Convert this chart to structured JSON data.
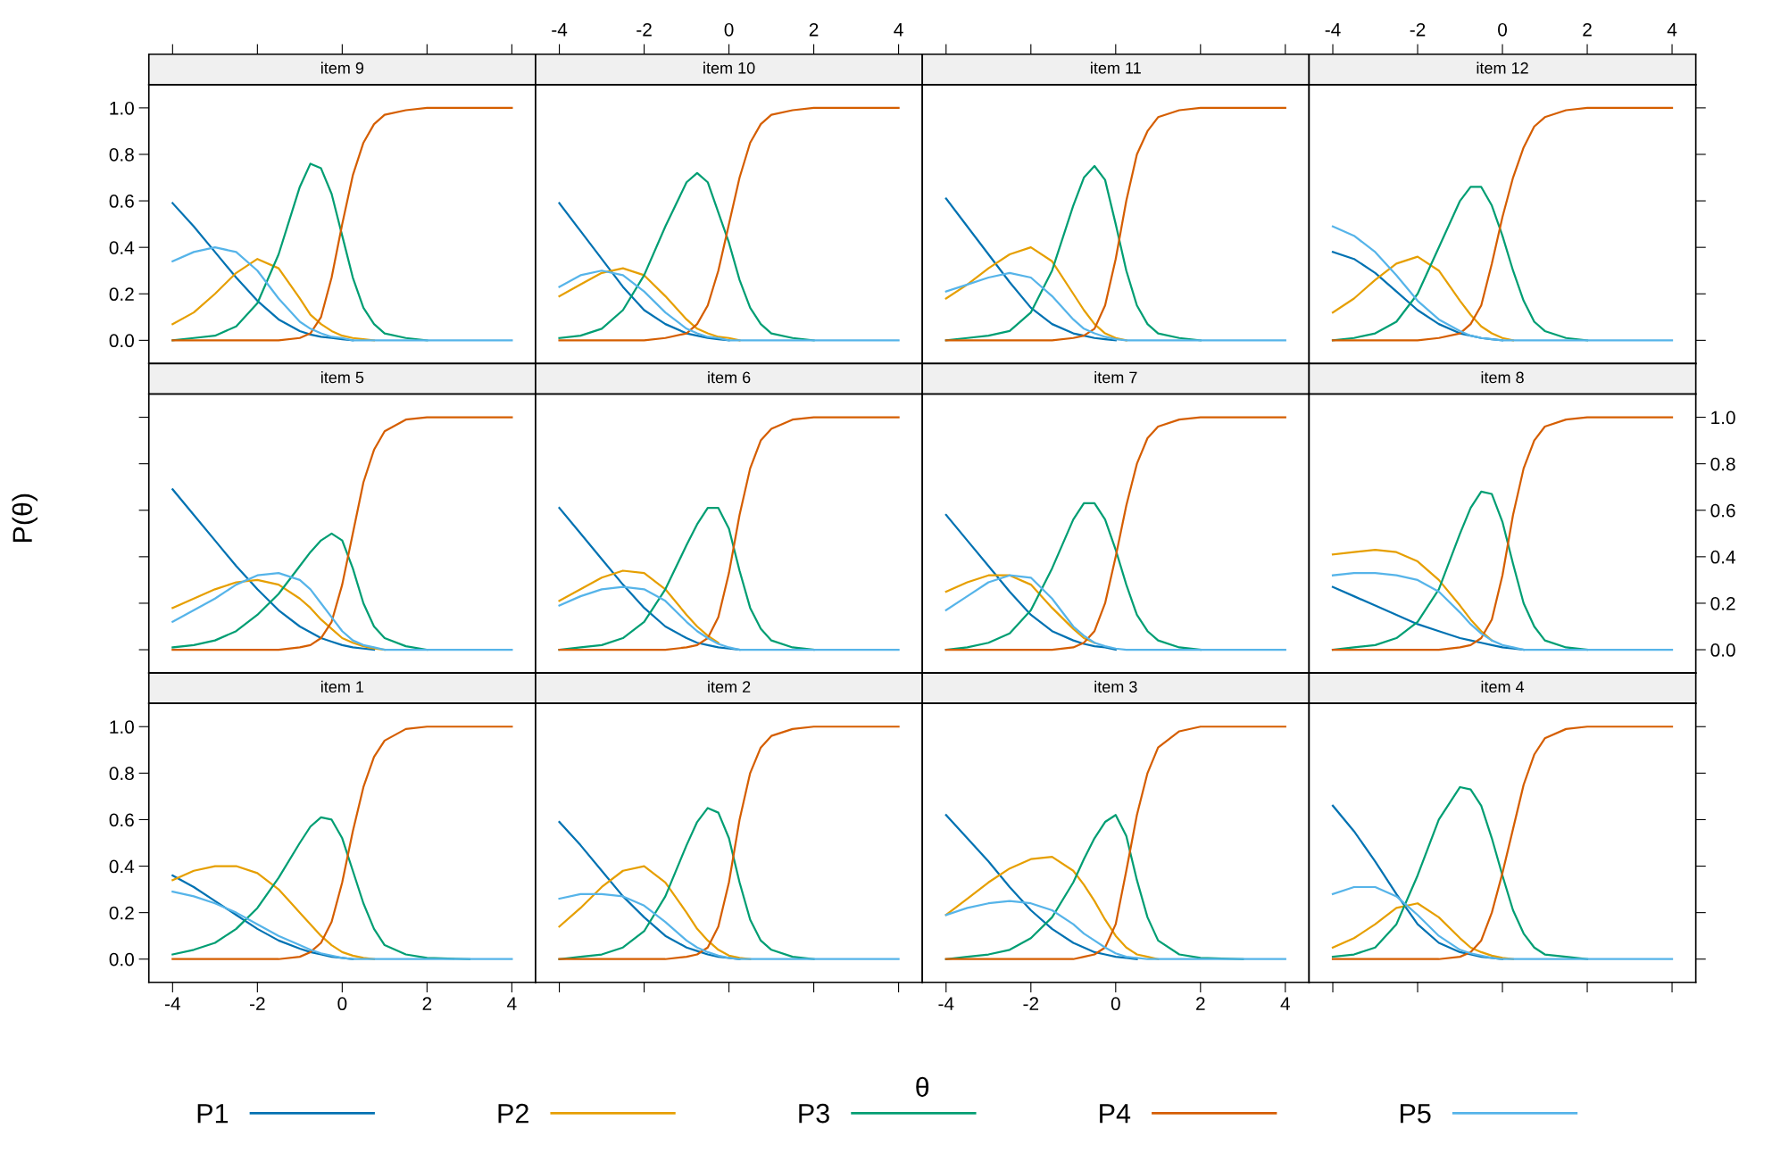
{
  "chart_data": [
    {
      "type": "line",
      "title": "item 9",
      "legend": "bottom",
      "x": [
        -4,
        -3.5,
        -3,
        -2.5,
        -2,
        -1.5,
        -1,
        -0.75,
        -0.5,
        -0.25,
        0,
        0.25,
        0.5,
        0.75,
        1,
        1.5,
        2,
        3,
        4
      ],
      "xlim": [
        -4.56,
        4.56
      ],
      "ylim": [
        -0.1,
        1.1
      ],
      "xticks": [
        {
          "value": -4,
          "label": null
        },
        {
          "value": -2,
          "label": null
        },
        {
          "value": 0,
          "label": null
        },
        {
          "value": 2,
          "label": null
        },
        {
          "value": 4,
          "label": null
        }
      ],
      "yticks": [
        {
          "value": 0,
          "label": "0.0"
        },
        {
          "value": 0.2,
          "label": "0.2"
        },
        {
          "value": 0.4,
          "label": "0.4"
        },
        {
          "value": 0.6,
          "label": "0.6"
        },
        {
          "value": 0.8,
          "label": "0.8"
        },
        {
          "value": 1,
          "label": "1.0"
        }
      ],
      "tick_labels": "y",
      "series": [
        {
          "name": "P1",
          "color": "#0072b2",
          "values": [
            0.59,
            0.49,
            0.38,
            0.27,
            0.17,
            0.09,
            0.04,
            0.025,
            0.015,
            0.01,
            0.005,
            0,
            null,
            null,
            null,
            null,
            null,
            null,
            null
          ]
        },
        {
          "name": "P2",
          "color": "#e69f00",
          "values": [
            0.07,
            0.12,
            0.2,
            0.29,
            0.35,
            0.31,
            0.18,
            0.11,
            0.07,
            0.04,
            0.02,
            0.01,
            0.005,
            0,
            null,
            null,
            null,
            null,
            null
          ]
        },
        {
          "name": "P3",
          "color": "#009e73",
          "values": [
            0,
            0.01,
            0.02,
            0.06,
            0.16,
            0.37,
            0.66,
            0.76,
            0.74,
            0.63,
            0.45,
            0.27,
            0.14,
            0.07,
            0.03,
            0.01,
            0,
            null,
            null
          ]
        },
        {
          "name": "P4",
          "color": "#d55e00",
          "values": [
            0,
            0,
            0,
            0,
            0,
            0,
            0.01,
            0.03,
            0.1,
            0.27,
            0.5,
            0.71,
            0.85,
            0.93,
            0.97,
            0.99,
            1,
            1,
            1
          ]
        },
        {
          "name": "P5",
          "color": "#56b4e9",
          "values": [
            0.34,
            0.38,
            0.4,
            0.38,
            0.3,
            0.18,
            0.08,
            0.05,
            0.03,
            0.015,
            0.01,
            0,
            0,
            0,
            0,
            0,
            0,
            0,
            0
          ]
        }
      ]
    },
    {
      "type": "line",
      "title": "item 10",
      "x": [
        -4,
        -3.5,
        -3,
        -2.5,
        -2,
        -1.5,
        -1,
        -0.75,
        -0.5,
        -0.25,
        0,
        0.25,
        0.5,
        0.75,
        1,
        1.5,
        2,
        3,
        4
      ],
      "xlim": [
        -4.56,
        4.56
      ],
      "ylim": [
        -0.1,
        1.1
      ],
      "xticks": [
        -4,
        -2,
        0,
        2,
        4
      ],
      "tick_labels": "x",
      "series": [
        {
          "color": "#0072b2",
          "values": [
            0.59,
            0.47,
            0.35,
            0.23,
            0.13,
            0.07,
            0.03,
            0.02,
            0.01,
            0.005,
            0,
            null,
            null,
            null,
            null,
            null,
            null,
            null,
            null
          ]
        },
        {
          "color": "#e69f00",
          "values": [
            0.19,
            0.24,
            0.29,
            0.31,
            0.28,
            0.19,
            0.09,
            0.05,
            0.03,
            0.015,
            0.01,
            0,
            null,
            null,
            null,
            null,
            null,
            null,
            null
          ]
        },
        {
          "color": "#009e73",
          "values": [
            0.01,
            0.02,
            0.05,
            0.13,
            0.28,
            0.49,
            0.68,
            0.72,
            0.68,
            0.55,
            0.42,
            0.26,
            0.14,
            0.07,
            0.03,
            0.01,
            0,
            null,
            null
          ]
        },
        {
          "color": "#d55e00",
          "values": [
            0,
            0,
            0,
            0,
            0,
            0.01,
            0.03,
            0.07,
            0.15,
            0.3,
            0.5,
            0.7,
            0.85,
            0.93,
            0.97,
            0.99,
            1,
            1,
            1
          ]
        },
        {
          "color": "#56b4e9",
          "values": [
            0.23,
            0.28,
            0.3,
            0.28,
            0.21,
            0.12,
            0.05,
            0.03,
            0.015,
            0.01,
            0,
            0,
            0,
            0,
            0,
            0,
            0,
            0,
            0
          ]
        }
      ]
    },
    {
      "type": "line",
      "title": "item 11",
      "x": [
        -4,
        -3.5,
        -3,
        -2.5,
        -2,
        -1.5,
        -1,
        -0.75,
        -0.5,
        -0.25,
        0,
        0.25,
        0.5,
        0.75,
        1,
        1.5,
        2,
        3,
        4
      ],
      "xlim": [
        -4.56,
        4.56
      ],
      "ylim": [
        -0.1,
        1.1
      ],
      "xticks": [
        {
          "value": -4,
          "label": null
        },
        {
          "value": -2,
          "label": null
        },
        {
          "value": 0,
          "label": null
        },
        {
          "value": 2,
          "label": null
        },
        {
          "value": 4,
          "label": null
        }
      ],
      "tick_labels": false,
      "series": [
        {
          "color": "#0072b2",
          "values": [
            0.61,
            0.49,
            0.37,
            0.25,
            0.14,
            0.07,
            0.03,
            0.02,
            0.01,
            0.005,
            0,
            null,
            null,
            null,
            null,
            null,
            null,
            null,
            null
          ]
        },
        {
          "color": "#e69f00",
          "values": [
            0.18,
            0.24,
            0.31,
            0.37,
            0.4,
            0.34,
            0.2,
            0.13,
            0.07,
            0.03,
            0.01,
            0,
            null,
            null,
            null,
            null,
            null,
            null,
            null
          ]
        },
        {
          "color": "#009e73",
          "values": [
            0,
            0.01,
            0.02,
            0.04,
            0.12,
            0.3,
            0.58,
            0.7,
            0.75,
            0.69,
            0.5,
            0.3,
            0.15,
            0.07,
            0.03,
            0.01,
            0,
            null,
            null
          ]
        },
        {
          "color": "#d55e00",
          "values": [
            0,
            0,
            0,
            0,
            0,
            0,
            0.01,
            0.02,
            0.05,
            0.15,
            0.35,
            0.6,
            0.8,
            0.9,
            0.96,
            0.99,
            1,
            1,
            1
          ]
        },
        {
          "color": "#56b4e9",
          "values": [
            0.21,
            0.24,
            0.27,
            0.29,
            0.27,
            0.19,
            0.09,
            0.05,
            0.03,
            0.015,
            0.005,
            0,
            0,
            0,
            0,
            0,
            0,
            0,
            0
          ]
        }
      ]
    },
    {
      "type": "line",
      "title": "item 12",
      "x": [
        -4,
        -3.5,
        -3,
        -2.5,
        -2,
        -1.5,
        -1,
        -0.75,
        -0.5,
        -0.25,
        0,
        0.25,
        0.5,
        0.75,
        1,
        1.5,
        2,
        3,
        4
      ],
      "xlim": [
        -4.56,
        4.56
      ],
      "ylim": [
        -0.1,
        1.1
      ],
      "xticks": [
        -4,
        -2,
        0,
        2,
        4
      ],
      "yticks": [
        {
          "value": 0,
          "label": null
        },
        {
          "value": 0.2,
          "label": null
        },
        {
          "value": 0.4,
          "label": null
        },
        {
          "value": 0.6,
          "label": null
        },
        {
          "value": 0.8,
          "label": null
        },
        {
          "value": 1,
          "label": null
        }
      ],
      "tick_labels": "x",
      "series": [
        {
          "color": "#0072b2",
          "values": [
            0.38,
            0.35,
            0.29,
            0.21,
            0.13,
            0.07,
            0.03,
            0.02,
            0.01,
            0.005,
            0,
            null,
            null,
            null,
            null,
            null,
            null,
            null,
            null
          ]
        },
        {
          "color": "#e69f00",
          "values": [
            0.12,
            0.18,
            0.26,
            0.33,
            0.36,
            0.3,
            0.17,
            0.11,
            0.06,
            0.03,
            0.01,
            0,
            null,
            null,
            null,
            null,
            null,
            null,
            null
          ]
        },
        {
          "color": "#009e73",
          "values": [
            0,
            0.01,
            0.03,
            0.08,
            0.2,
            0.4,
            0.6,
            0.66,
            0.66,
            0.58,
            0.45,
            0.3,
            0.17,
            0.08,
            0.04,
            0.01,
            0,
            null,
            null
          ]
        },
        {
          "color": "#d55e00",
          "values": [
            0,
            0,
            0,
            0,
            0,
            0.01,
            0.03,
            0.07,
            0.15,
            0.33,
            0.53,
            0.7,
            0.83,
            0.92,
            0.96,
            0.99,
            1,
            1,
            1
          ]
        },
        {
          "color": "#56b4e9",
          "values": [
            0.49,
            0.45,
            0.38,
            0.28,
            0.17,
            0.09,
            0.04,
            0.02,
            0.01,
            0.005,
            0,
            0,
            0,
            0,
            0,
            0,
            0,
            0,
            0
          ]
        }
      ]
    },
    {
      "type": "line",
      "title": "item 5",
      "ylabel": "P(θ)",
      "x": [
        -4,
        -3.5,
        -3,
        -2.5,
        -2,
        -1.5,
        -1,
        -0.75,
        -0.5,
        -0.25,
        0,
        0.25,
        0.5,
        0.75,
        1,
        1.5,
        2,
        3,
        4
      ],
      "xlim": [
        -4.56,
        4.56
      ],
      "ylim": [
        -0.1,
        1.1
      ],
      "yticks": [
        {
          "value": 0,
          "label": null
        },
        {
          "value": 0.2,
          "label": null
        },
        {
          "value": 0.4,
          "label": null
        },
        {
          "value": 0.6,
          "label": null
        },
        {
          "value": 0.8,
          "label": null
        },
        {
          "value": 1,
          "label": null
        }
      ],
      "tick_labels": false,
      "series": [
        {
          "color": "#0072b2",
          "values": [
            0.69,
            0.58,
            0.47,
            0.36,
            0.26,
            0.17,
            0.1,
            0.075,
            0.05,
            0.035,
            0.02,
            0.01,
            0.005,
            0,
            null,
            null,
            null,
            null,
            null
          ]
        },
        {
          "color": "#e69f00",
          "values": [
            0.18,
            0.22,
            0.26,
            0.29,
            0.3,
            0.28,
            0.22,
            0.18,
            0.13,
            0.09,
            0.05,
            0.03,
            0.015,
            0.005,
            0,
            null,
            null,
            null,
            null
          ]
        },
        {
          "color": "#009e73",
          "values": [
            0.01,
            0.02,
            0.04,
            0.08,
            0.15,
            0.24,
            0.36,
            0.42,
            0.47,
            0.5,
            0.47,
            0.35,
            0.2,
            0.1,
            0.05,
            0.015,
            0,
            null,
            null
          ]
        },
        {
          "color": "#d55e00",
          "values": [
            0,
            0,
            0,
            0,
            0,
            0,
            0.01,
            0.02,
            0.05,
            0.12,
            0.28,
            0.5,
            0.72,
            0.86,
            0.94,
            0.99,
            1,
            1,
            1
          ]
        },
        {
          "color": "#56b4e9",
          "values": [
            0.12,
            0.17,
            0.22,
            0.28,
            0.32,
            0.33,
            0.3,
            0.26,
            0.2,
            0.14,
            0.08,
            0.04,
            0.02,
            0.01,
            0,
            0,
            0,
            0,
            0
          ]
        }
      ]
    },
    {
      "type": "line",
      "title": "item 6",
      "x": [
        -4,
        -3.5,
        -3,
        -2.5,
        -2,
        -1.5,
        -1,
        -0.75,
        -0.5,
        -0.25,
        0,
        0.25,
        0.5,
        0.75,
        1,
        1.5,
        2,
        3,
        4
      ],
      "xlim": [
        -4.56,
        4.56
      ],
      "ylim": [
        -0.1,
        1.1
      ],
      "tick_labels": false,
      "series": [
        {
          "color": "#0072b2",
          "values": [
            0.61,
            0.5,
            0.39,
            0.28,
            0.18,
            0.1,
            0.05,
            0.03,
            0.02,
            0.01,
            0.005,
            0,
            null,
            null,
            null,
            null,
            null,
            null,
            null
          ]
        },
        {
          "color": "#e69f00",
          "values": [
            0.21,
            0.26,
            0.31,
            0.34,
            0.33,
            0.26,
            0.15,
            0.1,
            0.06,
            0.03,
            null,
            null,
            null,
            null,
            null,
            null,
            null,
            null,
            null
          ]
        },
        {
          "color": "#009e73",
          "values": [
            0,
            0.01,
            0.02,
            0.05,
            0.12,
            0.26,
            0.45,
            0.54,
            0.61,
            0.61,
            0.52,
            0.34,
            0.18,
            0.09,
            0.04,
            0.01,
            0,
            null,
            null
          ]
        },
        {
          "color": "#d55e00",
          "values": [
            0,
            0,
            0,
            0,
            0,
            0,
            0.01,
            0.02,
            0.05,
            0.14,
            0.33,
            0.58,
            0.78,
            0.9,
            0.95,
            0.99,
            1,
            1,
            1
          ]
        },
        {
          "color": "#56b4e9",
          "values": [
            0.19,
            0.23,
            0.26,
            0.27,
            0.26,
            0.21,
            0.12,
            0.08,
            0.05,
            0.025,
            0.01,
            0,
            0,
            0,
            0,
            0,
            0,
            0,
            0
          ]
        }
      ]
    },
    {
      "type": "line",
      "title": "item 7",
      "x": [
        -4,
        -3.5,
        -3,
        -2.5,
        -2,
        -1.5,
        -1,
        -0.75,
        -0.5,
        -0.25,
        0,
        0.25,
        0.5,
        0.75,
        1,
        1.5,
        2,
        3,
        4
      ],
      "xlim": [
        -4.56,
        4.56
      ],
      "ylim": [
        -0.1,
        1.1
      ],
      "tick_labels": false,
      "series": [
        {
          "color": "#0072b2",
          "values": [
            0.58,
            0.47,
            0.36,
            0.25,
            0.15,
            0.08,
            0.04,
            0.025,
            0.015,
            0.01,
            0,
            null,
            null,
            null,
            null,
            null,
            null,
            null,
            null
          ]
        },
        {
          "color": "#e69f00",
          "values": [
            0.25,
            0.29,
            0.32,
            0.32,
            0.28,
            0.18,
            0.09,
            0.05,
            0.03,
            null,
            null,
            null,
            null,
            null,
            null,
            null,
            null,
            null,
            null
          ]
        },
        {
          "color": "#009e73",
          "values": [
            0,
            0.01,
            0.03,
            0.07,
            0.17,
            0.35,
            0.56,
            0.63,
            0.63,
            0.56,
            0.43,
            0.28,
            0.15,
            0.08,
            0.04,
            0.01,
            0,
            null,
            null
          ]
        },
        {
          "color": "#d55e00",
          "values": [
            0,
            0,
            0,
            0,
            0,
            0,
            0.01,
            0.03,
            0.08,
            0.2,
            0.4,
            0.62,
            0.8,
            0.91,
            0.96,
            0.99,
            1,
            1,
            1
          ]
        },
        {
          "color": "#56b4e9",
          "values": [
            0.17,
            0.23,
            0.29,
            0.32,
            0.31,
            0.22,
            0.1,
            0.06,
            0.03,
            0.015,
            0.005,
            0,
            0,
            0,
            0,
            0,
            0,
            0,
            0
          ]
        }
      ]
    },
    {
      "type": "line",
      "title": "item 8",
      "x": [
        -4,
        -3.5,
        -3,
        -2.5,
        -2,
        -1.5,
        -1,
        -0.75,
        -0.5,
        -0.25,
        0,
        0.25,
        0.5,
        0.75,
        1,
        1.5,
        2,
        3,
        4
      ],
      "xlim": [
        -4.56,
        4.56
      ],
      "ylim": [
        -0.1,
        1.1
      ],
      "yticks": [
        {
          "value": 0,
          "label": "0.0"
        },
        {
          "value": 0.2,
          "label": "0.2"
        },
        {
          "value": 0.4,
          "label": "0.4"
        },
        {
          "value": 0.6,
          "label": "0.6"
        },
        {
          "value": 0.8,
          "label": "0.8"
        },
        {
          "value": 1,
          "label": "1.0"
        }
      ],
      "tick_labels": "y",
      "series": [
        {
          "color": "#0072b2",
          "values": [
            0.27,
            0.23,
            0.19,
            0.15,
            0.11,
            0.08,
            0.05,
            0.04,
            0.03,
            0.02,
            0.01,
            0.005,
            0,
            null,
            null,
            null,
            null,
            null,
            null
          ]
        },
        {
          "color": "#e69f00",
          "values": [
            0.41,
            0.42,
            0.43,
            0.42,
            0.38,
            0.3,
            0.19,
            0.13,
            0.08,
            0.04,
            null,
            null,
            null,
            null,
            null,
            null,
            null,
            null,
            null
          ]
        },
        {
          "color": "#009e73",
          "values": [
            0,
            0.01,
            0.02,
            0.05,
            0.12,
            0.26,
            0.5,
            0.61,
            0.68,
            0.67,
            0.55,
            0.37,
            0.2,
            0.1,
            0.04,
            0.01,
            0,
            null,
            null
          ]
        },
        {
          "color": "#d55e00",
          "values": [
            0,
            0,
            0,
            0,
            0,
            0,
            0.01,
            0.02,
            0.05,
            0.13,
            0.32,
            0.58,
            0.78,
            0.9,
            0.96,
            0.99,
            1,
            1,
            1
          ]
        },
        {
          "color": "#56b4e9",
          "values": [
            0.32,
            0.33,
            0.33,
            0.32,
            0.3,
            0.25,
            0.16,
            0.11,
            0.07,
            0.04,
            0.02,
            0.01,
            0,
            0,
            0,
            0,
            0,
            0,
            0
          ]
        }
      ]
    },
    {
      "type": "line",
      "title": "item 1",
      "x": [
        -4,
        -3.5,
        -3,
        -2.5,
        -2,
        -1.5,
        -1,
        -0.75,
        -0.5,
        -0.25,
        0,
        0.25,
        0.5,
        0.75,
        1,
        1.5,
        2,
        3,
        4
      ],
      "xlim": [
        -4.56,
        4.56
      ],
      "ylim": [
        -0.1,
        1.1
      ],
      "xticks": [
        -4,
        -2,
        0,
        2,
        4
      ],
      "yticks": [
        {
          "value": 0,
          "label": "0.0"
        },
        {
          "value": 0.2,
          "label": "0.2"
        },
        {
          "value": 0.4,
          "label": "0.4"
        },
        {
          "value": 0.6,
          "label": "0.6"
        },
        {
          "value": 0.8,
          "label": "0.8"
        },
        {
          "value": 1,
          "label": "1.0"
        }
      ],
      "series": [
        {
          "color": "#0072b2",
          "values": [
            0.36,
            0.31,
            0.25,
            0.19,
            0.13,
            0.08,
            0.045,
            0.03,
            0.02,
            0.01,
            0.005,
            0,
            null,
            null,
            null,
            null,
            null,
            null,
            null
          ]
        },
        {
          "color": "#e69f00",
          "values": [
            0.34,
            0.38,
            0.4,
            0.4,
            0.37,
            0.3,
            0.2,
            0.15,
            0.1,
            0.06,
            0.03,
            0.015,
            0.005,
            0,
            null,
            null,
            null,
            null,
            null
          ]
        },
        {
          "color": "#009e73",
          "values": [
            0.02,
            0.04,
            0.07,
            0.13,
            0.22,
            0.35,
            0.5,
            0.57,
            0.61,
            0.6,
            0.52,
            0.38,
            0.24,
            0.13,
            0.06,
            0.02,
            0.005,
            0,
            null
          ]
        },
        {
          "color": "#d55e00",
          "values": [
            0,
            0,
            0,
            0,
            0,
            0,
            0.01,
            0.03,
            0.07,
            0.16,
            0.33,
            0.55,
            0.74,
            0.87,
            0.94,
            0.99,
            1,
            1,
            1
          ]
        },
        {
          "color": "#56b4e9",
          "values": [
            0.29,
            0.27,
            0.24,
            0.2,
            0.15,
            0.1,
            0.06,
            0.04,
            0.025,
            0.015,
            0.005,
            0,
            0,
            0,
            0,
            0,
            0,
            0,
            0
          ]
        }
      ]
    },
    {
      "type": "line",
      "title": "item 2",
      "xlabel": "θ",
      "x": [
        -4,
        -3.5,
        -3,
        -2.5,
        -2,
        -1.5,
        -1,
        -0.75,
        -0.5,
        -0.25,
        0,
        0.25,
        0.5,
        0.75,
        1,
        1.5,
        2,
        3,
        4
      ],
      "xlim": [
        -4.56,
        4.56
      ],
      "ylim": [
        -0.1,
        1.1
      ],
      "xticks": [
        {
          "value": -4,
          "label": null
        },
        {
          "value": -2,
          "label": null
        },
        {
          "value": 0,
          "label": null
        },
        {
          "value": 2,
          "label": null
        },
        {
          "value": 4,
          "label": null
        }
      ],
      "tick_labels": false,
      "series": [
        {
          "color": "#0072b2",
          "values": [
            0.59,
            0.49,
            0.38,
            0.27,
            0.18,
            0.1,
            0.05,
            0.035,
            0.02,
            0.01,
            0.005,
            0,
            null,
            null,
            null,
            null,
            null,
            null,
            null
          ]
        },
        {
          "color": "#e69f00",
          "values": [
            0.14,
            0.22,
            0.31,
            0.38,
            0.4,
            0.33,
            0.2,
            0.13,
            0.08,
            0.04,
            0.015,
            0.005,
            0,
            null,
            null,
            null,
            null,
            null,
            null
          ]
        },
        {
          "color": "#009e73",
          "values": [
            0,
            0.01,
            0.02,
            0.05,
            0.12,
            0.27,
            0.49,
            0.59,
            0.65,
            0.63,
            0.52,
            0.33,
            0.17,
            0.08,
            0.04,
            0.01,
            0,
            null,
            null
          ]
        },
        {
          "color": "#d55e00",
          "values": [
            0,
            0,
            0,
            0,
            0,
            0,
            0.01,
            0.02,
            0.05,
            0.14,
            0.33,
            0.6,
            0.8,
            0.91,
            0.96,
            0.99,
            1,
            1,
            1
          ]
        },
        {
          "color": "#56b4e9",
          "values": [
            0.26,
            0.28,
            0.28,
            0.27,
            0.23,
            0.16,
            0.08,
            0.05,
            0.03,
            0.015,
            0.005,
            0,
            0,
            0,
            0,
            0,
            0,
            0,
            0
          ]
        }
      ]
    },
    {
      "type": "line",
      "title": "item 3",
      "x": [
        -4,
        -3.5,
        -3,
        -2.5,
        -2,
        -1.5,
        -1,
        -0.75,
        -0.5,
        -0.25,
        0,
        0.25,
        0.5,
        0.75,
        1,
        1.5,
        2,
        3,
        4
      ],
      "xlim": [
        -4.56,
        4.56
      ],
      "ylim": [
        -0.1,
        1.1
      ],
      "xticks": [
        -4,
        -2,
        0,
        2,
        4
      ],
      "tick_labels": "x",
      "series": [
        {
          "color": "#0072b2",
          "values": [
            0.62,
            0.52,
            0.42,
            0.31,
            0.21,
            0.13,
            0.07,
            0.05,
            0.03,
            0.02,
            0.01,
            0.005,
            0,
            null,
            null,
            null,
            null,
            null,
            null
          ]
        },
        {
          "color": "#e69f00",
          "values": [
            0.19,
            0.26,
            0.33,
            0.39,
            0.43,
            0.44,
            0.38,
            0.32,
            0.25,
            0.17,
            0.1,
            0.05,
            0.02,
            0.01,
            0,
            null,
            null,
            null,
            null
          ]
        },
        {
          "color": "#009e73",
          "values": [
            0,
            0.01,
            0.02,
            0.04,
            0.09,
            0.18,
            0.33,
            0.43,
            0.52,
            0.59,
            0.62,
            0.53,
            0.34,
            0.18,
            0.08,
            0.02,
            0.005,
            0,
            null
          ]
        },
        {
          "color": "#d55e00",
          "values": [
            0,
            0,
            0,
            0,
            0,
            0,
            0,
            0.01,
            0.02,
            0.05,
            0.15,
            0.38,
            0.62,
            0.8,
            0.91,
            0.98,
            1,
            1,
            1
          ]
        },
        {
          "color": "#56b4e9",
          "values": [
            0.19,
            0.22,
            0.24,
            0.25,
            0.24,
            0.21,
            0.15,
            0.11,
            0.08,
            0.05,
            0.025,
            0.01,
            0.005,
            0,
            0,
            0,
            0,
            0,
            0
          ]
        }
      ]
    },
    {
      "type": "line",
      "title": "item 4",
      "x": [
        -4,
        -3.5,
        -3,
        -2.5,
        -2,
        -1.5,
        -1,
        -0.75,
        -0.5,
        -0.25,
        0,
        0.25,
        0.5,
        0.75,
        1,
        1.5,
        2,
        3,
        4
      ],
      "xlim": [
        -4.56,
        4.56
      ],
      "ylim": [
        -0.1,
        1.1
      ],
      "xticks": [
        {
          "value": -4,
          "label": null
        },
        {
          "value": -2,
          "label": null
        },
        {
          "value": 0,
          "label": null
        },
        {
          "value": 2,
          "label": null
        },
        {
          "value": 4,
          "label": null
        }
      ],
      "yticks": [
        {
          "value": 0,
          "label": null
        },
        {
          "value": 0.2,
          "label": null
        },
        {
          "value": 0.4,
          "label": null
        },
        {
          "value": 0.6,
          "label": null
        },
        {
          "value": 0.8,
          "label": null
        },
        {
          "value": 1,
          "label": null
        }
      ],
      "tick_labels": false,
      "series": [
        {
          "color": "#0072b2",
          "values": [
            0.66,
            0.55,
            0.42,
            0.28,
            0.15,
            0.07,
            0.03,
            0.02,
            0.01,
            0.005,
            0,
            null,
            null,
            null,
            null,
            null,
            null,
            null,
            null
          ]
        },
        {
          "color": "#e69f00",
          "values": [
            0.05,
            0.09,
            0.15,
            0.22,
            0.24,
            0.18,
            0.09,
            0.05,
            0.03,
            0.015,
            0.005,
            0,
            null,
            null,
            null,
            null,
            null,
            null,
            null
          ]
        },
        {
          "color": "#009e73",
          "values": [
            0.01,
            0.02,
            0.05,
            0.15,
            0.36,
            0.6,
            0.74,
            0.73,
            0.66,
            0.52,
            0.36,
            0.21,
            0.11,
            0.05,
            0.02,
            0.01,
            0,
            null,
            null
          ]
        },
        {
          "color": "#d55e00",
          "values": [
            0,
            0,
            0,
            0,
            0,
            0,
            0.01,
            0.03,
            0.08,
            0.2,
            0.37,
            0.56,
            0.75,
            0.88,
            0.95,
            0.99,
            1,
            1,
            1
          ]
        },
        {
          "color": "#56b4e9",
          "values": [
            0.28,
            0.31,
            0.31,
            0.27,
            0.19,
            0.1,
            0.04,
            0.025,
            0.015,
            0.005,
            0,
            0,
            0,
            0,
            0,
            0,
            0,
            0,
            0
          ]
        }
      ]
    }
  ]
}
